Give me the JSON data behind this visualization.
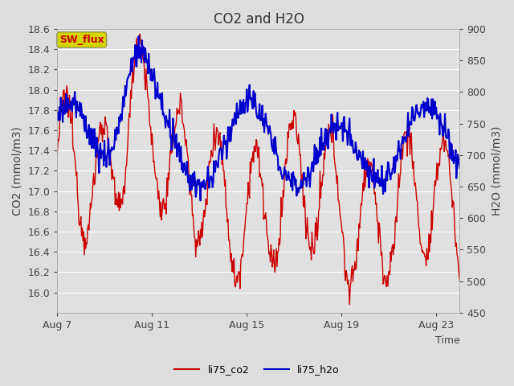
{
  "title": "CO2 and H2O",
  "xlabel": "Time",
  "ylabel_left": "CO2 (mmol/m3)",
  "ylabel_right": "H2O (mmol/m3)",
  "ylim_left": [
    15.8,
    18.6
  ],
  "ylim_right": [
    450,
    900
  ],
  "yticks_left": [
    16.0,
    16.2,
    16.4,
    16.6,
    16.8,
    17.0,
    17.2,
    17.4,
    17.6,
    17.8,
    18.0,
    18.2,
    18.4,
    18.6
  ],
  "yticks_right": [
    450,
    500,
    550,
    600,
    650,
    700,
    750,
    800,
    850,
    900
  ],
  "xtick_labels": [
    "Aug 7",
    "Aug 11",
    "Aug 15",
    "Aug 19",
    "Aug 23"
  ],
  "xtick_positions": [
    0,
    4,
    8,
    12,
    16
  ],
  "color_co2": "#cc0000",
  "color_h2o": "#0000cc",
  "legend_label_co2": "li75_co2",
  "legend_label_h2o": "li75_h2o",
  "sw_flux_label": "SW_flux",
  "sw_flux_bg": "#d4d400",
  "sw_flux_text_color": "#cc0000",
  "background_color": "#dddddd",
  "plot_bg_top": "#e8e8e8",
  "plot_bg_bot": "#d0d0d0",
  "grid_color": "#ffffff",
  "title_fontsize": 12,
  "axis_fontsize": 10,
  "tick_fontsize": 9,
  "linewidth_co2": 1.0,
  "linewidth_h2o": 1.5
}
